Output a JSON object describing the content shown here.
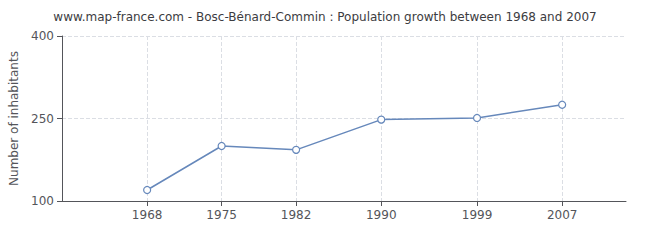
{
  "chart_data": {
    "type": "line",
    "title": "www.map-france.com - Bosc-Bénard-Commin : Population growth between 1968 and 2007",
    "ylabel": "Number of inhabitants",
    "x": [
      1968,
      1975,
      1982,
      1990,
      1999,
      2007
    ],
    "values": [
      120,
      200,
      193,
      248,
      251,
      275
    ],
    "color": "#6688bb",
    "marker": "circle",
    "xlim": [
      1960,
      2013
    ],
    "xticks": [
      1968,
      1975,
      1982,
      1990,
      1999,
      2007
    ],
    "ylim": [
      100,
      400
    ],
    "yticks": [
      100,
      250,
      400
    ],
    "grid": true
  }
}
